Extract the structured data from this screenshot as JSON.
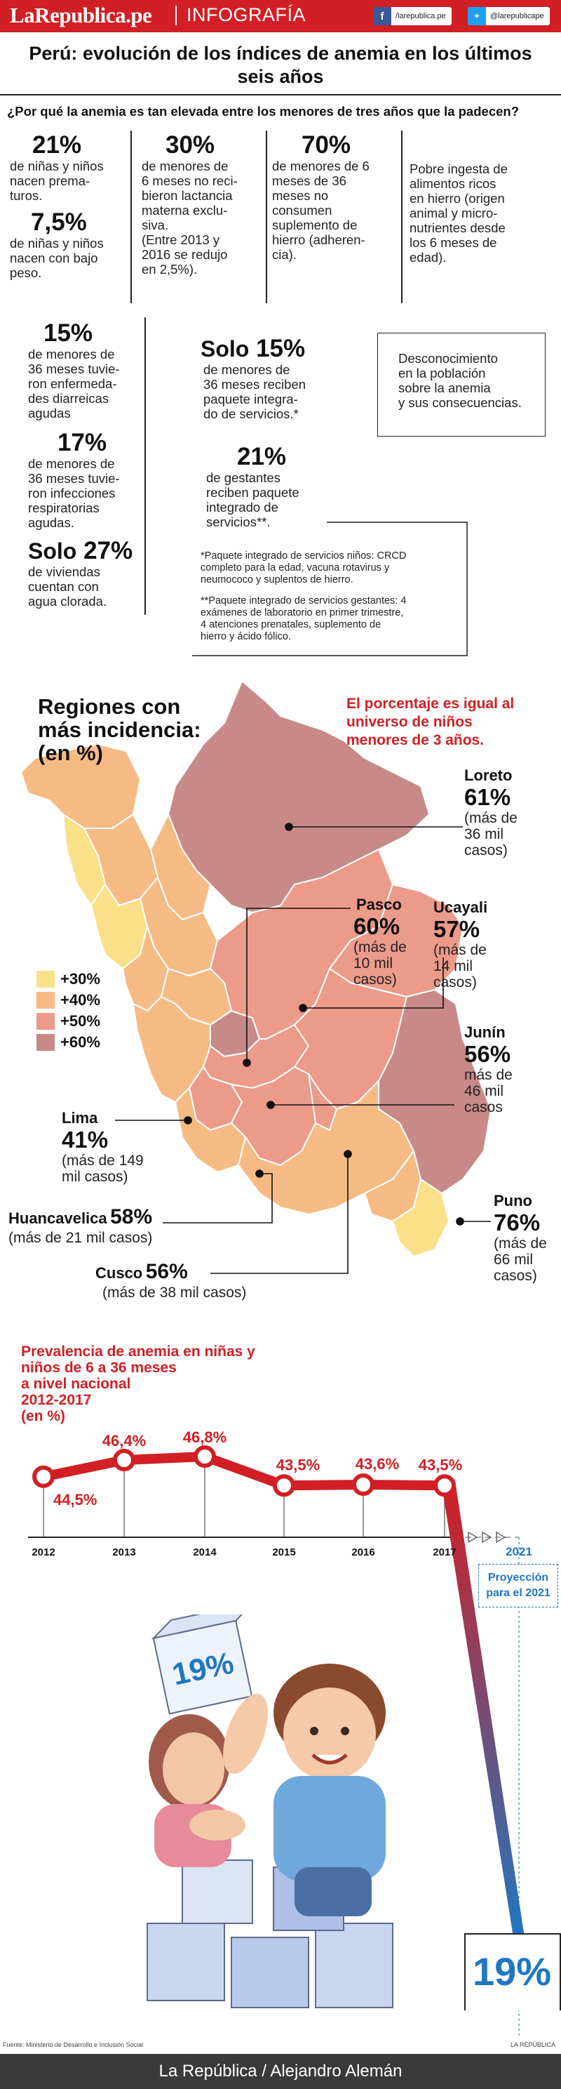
{
  "header": {
    "logo": "LaRepublica.pe",
    "section": "INFOGRAFÍA",
    "facebook_handle": "/larepublica.pe",
    "twitter_handle": "@larepublicape",
    "brand_color": "#d11f25"
  },
  "title_line1": "Perú: evolución de los índices de anemia en los últimos",
  "title_line2": "seis años",
  "question": "¿Por qué la anemia es tan elevada entre los menores de tres años que la padecen?",
  "causes": {
    "c1_big": "21%",
    "c1_text": [
      "de niñas y niños",
      "nacen prema-",
      "turos."
    ],
    "c2_big": "7,5%",
    "c2_text": [
      "de niñas y niños",
      "nacen con bajo",
      "peso."
    ],
    "c3_big": "30%",
    "c3_text": [
      "de menores de",
      "6 meses no reci-",
      "bieron lactancia",
      "materna exclu-",
      "siva.",
      "(Entre 2013 y",
      "2016 se redujo",
      "en 2,5%)."
    ],
    "c4_big": "70%",
    "c4_text": [
      "de menores de 6",
      "meses de 36",
      "meses no",
      "consumen",
      "suplemento de",
      "hierro (adheren-",
      "cia)."
    ],
    "c5_text": [
      "Pobre ingesta de",
      "alimentos ricos",
      "en hierro (origen",
      "animal y micro-",
      "nutrientes desde",
      "los 6 meses de",
      "edad)."
    ],
    "c6_big": "15%",
    "c6_text": [
      "de menores de",
      "36 meses tuvie-",
      "ron enfermeda-",
      "des diarreicas",
      "agudas"
    ],
    "c7_big": "17%",
    "c7_text": [
      "de menores de",
      "36 meses tuvie-",
      "ron infecciones",
      "respiratorias",
      "agudas."
    ],
    "c8_word": "Solo",
    "c8_big": "27%",
    "c8_text": [
      "de viviendas",
      "cuentan con",
      "agua clorada."
    ],
    "c9_word": "Solo",
    "c9_big": "15%",
    "c9_text": [
      "de menores de",
      "36 meses reciben",
      "paquete integra-",
      "do de servicios.*"
    ],
    "c10_big": "21%",
    "c10_text": [
      "de gestantes",
      "reciben paquete",
      "integrado de",
      "servicios**."
    ],
    "c11_text": [
      "Desconocimiento",
      "en la población",
      "sobre la anemia",
      "y sus consecuencias."
    ],
    "note1": [
      "*Paquete integrado de servicios niños: CRCD",
      "completo para la edad, vacuna rotavirus y",
      "neumococo y suplentos de hierro."
    ],
    "note2": [
      "**Paquete integrado de servicios gestantes: 4",
      "exámenes de laboratorio en primer trimestre,",
      "4 atenciones prenatales, suplemento de",
      "hierro y ácido fólico."
    ]
  },
  "map": {
    "title": [
      "Regiones con",
      "más incidencia:",
      "(en %)"
    ],
    "note": [
      "El porcentaje es igual al",
      "universo de niños",
      "menores de 3 años."
    ],
    "legend": [
      {
        "label": "+30%",
        "color": "#fbe08a"
      },
      {
        "label": "+40%",
        "color": "#f6bb85"
      },
      {
        "label": "+50%",
        "color": "#ec9a8a"
      },
      {
        "label": "+60%",
        "color": "#c78a88"
      }
    ],
    "regions": {
      "loreto": {
        "name": "Loreto",
        "pct": "61%",
        "sub": [
          "(más de",
          "36 mil",
          "casos)"
        ]
      },
      "pasco": {
        "name": "Pasco",
        "pct": "60%",
        "sub": [
          "(más de",
          "10 mil",
          "casos)"
        ]
      },
      "ucayali": {
        "name": "Ucayali",
        "pct": "57%",
        "sub": [
          "(más de",
          "14 mil",
          "casos)"
        ]
      },
      "junin": {
        "name": "Junín",
        "pct": "56%",
        "sub": [
          "más de",
          "46 mil",
          "casos"
        ]
      },
      "lima": {
        "name": "Lima",
        "pct": "41%",
        "sub": [
          "(más de 149",
          "mil casos)"
        ]
      },
      "huancavelica": {
        "name": "Huancavelica",
        "pct": "58%",
        "sub": [
          "(más de 21 mil casos)"
        ]
      },
      "cusco": {
        "name": "Cusco",
        "pct": "56%",
        "sub": [
          "(más de 38 mil casos)"
        ]
      },
      "puno": {
        "name": "Puno",
        "pct": "76%",
        "sub": [
          "(más de",
          "66 mil",
          "casos)"
        ]
      }
    }
  },
  "chart_data": {
    "type": "line",
    "title": "Prevalencia de anemia en niñas y niños de 6 a 36 meses a nivel nacional 2012-2017 (en %)",
    "title_lines": [
      "Prevalencia de anemia en niñas y",
      "niños de 6 a 36 meses",
      "a nivel nacional",
      "2012-2017",
      "(en %)"
    ],
    "x": [
      "2012",
      "2013",
      "2014",
      "2015",
      "2016",
      "2017"
    ],
    "values": [
      44.5,
      46.4,
      46.8,
      43.5,
      43.6,
      43.5
    ],
    "labels": [
      "44,5%",
      "46,4%",
      "46,8%",
      "43,5%",
      "43,6%",
      "43,5%"
    ],
    "projection_year": "2021",
    "projection_value": 19,
    "projection_label": "19%",
    "projection_caption": [
      "Proyección",
      "para el 2021"
    ],
    "line_color": "#d11f25",
    "projection_color": "#1f77c2"
  },
  "illustration": {
    "box_label": "19%"
  },
  "source": "Fuente: Ministerio de Desarrollo e Inclusión Social",
  "credit_small": "LA REPÚBLICA",
  "footer": "La República / Alejandro Alemán"
}
